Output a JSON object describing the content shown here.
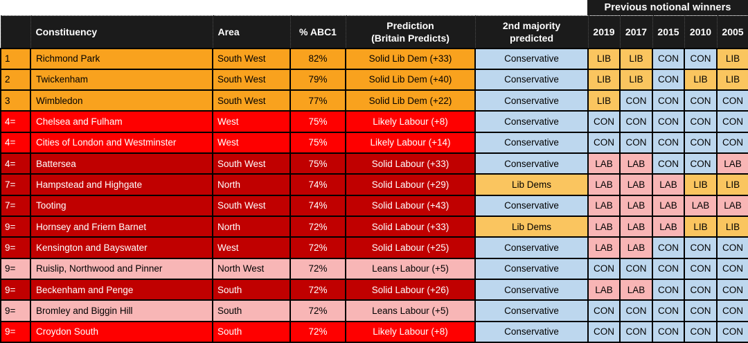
{
  "top_header": {
    "label": "Previous notional winners"
  },
  "columns": {
    "rank": "",
    "constituency": "Constituency",
    "area": "Area",
    "abc1": "% ABC1",
    "prediction": [
      "Prediction",
      "(Britain Predicts)"
    ],
    "majority": [
      "2nd majority",
      "predicted"
    ],
    "years": [
      "2019",
      "2017",
      "2015",
      "2010",
      "2005"
    ]
  },
  "colors": {
    "header_bg": "#1B1B1B",
    "header_text": "#FFFFFF",
    "row_tones": {
      "libdem": {
        "bg": "#F9A21E",
        "text": "#000000"
      },
      "likely": {
        "bg": "#FE0000",
        "text": "#FFFFFF"
      },
      "solid": {
        "bg": "#C00000",
        "text": "#FFFFFF"
      },
      "leans": {
        "bg": "#F8B6B6",
        "text": "#000000"
      }
    },
    "party_cells": {
      "con": {
        "bg": "#BDD7EE",
        "text": "#000000"
      },
      "lab": {
        "bg": "#F8B5B5",
        "text": "#000000"
      },
      "lib": {
        "bg": "#FAC55F",
        "text": "#000000"
      }
    }
  },
  "rows": [
    {
      "rank": "1",
      "constituency": "Richmond Park",
      "area": "South West",
      "abc1": "82%",
      "prediction": "Solid Lib Dem (+33)",
      "tone": "libdem",
      "majority": "Conservative",
      "majority_party": "con",
      "years": [
        "LIB",
        "LIB",
        "CON",
        "CON",
        "LIB"
      ]
    },
    {
      "rank": "2",
      "constituency": "Twickenham",
      "area": "South West",
      "abc1": "79%",
      "prediction": "Solid Lib Dem (+40)",
      "tone": "libdem",
      "majority": "Conservative",
      "majority_party": "con",
      "years": [
        "LIB",
        "LIB",
        "CON",
        "LIB",
        "LIB"
      ]
    },
    {
      "rank": "3",
      "constituency": "Wimbledon",
      "area": "South West",
      "abc1": "77%",
      "prediction": "Solid Lib Dem (+22)",
      "tone": "libdem",
      "majority": "Conservative",
      "majority_party": "con",
      "years": [
        "LIB",
        "CON",
        "CON",
        "CON",
        "CON"
      ]
    },
    {
      "rank": "4=",
      "constituency": "Chelsea and Fulham",
      "area": "West",
      "abc1": "75%",
      "prediction": "Likely Labour (+8)",
      "tone": "likely",
      "majority": "Conservative",
      "majority_party": "con",
      "years": [
        "CON",
        "CON",
        "CON",
        "CON",
        "CON"
      ]
    },
    {
      "rank": "4=",
      "constituency": "Cities of London and Westminster",
      "area": "West",
      "abc1": "75%",
      "prediction": "Likely Labour (+14)",
      "tone": "likely",
      "majority": "Conservative",
      "majority_party": "con",
      "years": [
        "CON",
        "CON",
        "CON",
        "CON",
        "CON"
      ]
    },
    {
      "rank": "4=",
      "constituency": "Battersea",
      "area": "South West",
      "abc1": "75%",
      "prediction": "Solid Labour (+33)",
      "tone": "solid",
      "majority": "Conservative",
      "majority_party": "con",
      "years": [
        "LAB",
        "LAB",
        "CON",
        "CON",
        "LAB"
      ]
    },
    {
      "rank": "7=",
      "constituency": "Hampstead and Highgate",
      "area": "North",
      "abc1": "74%",
      "prediction": "Solid Labour (+29)",
      "tone": "solid",
      "majority": "Lib Dems",
      "majority_party": "lib",
      "years": [
        "LAB",
        "LAB",
        "LAB",
        "LIB",
        "LIB"
      ]
    },
    {
      "rank": "7=",
      "constituency": "Tooting",
      "area": "South West",
      "abc1": "74%",
      "prediction": "Solid Labour (+43)",
      "tone": "solid",
      "majority": "Conservative",
      "majority_party": "con",
      "years": [
        "LAB",
        "LAB",
        "LAB",
        "LAB",
        "LAB"
      ]
    },
    {
      "rank": "9=",
      "constituency": "Hornsey and Friern Barnet",
      "area": "North",
      "abc1": "72%",
      "prediction": "Solid Labour (+33)",
      "tone": "solid",
      "majority": "Lib Dems",
      "majority_party": "lib",
      "years": [
        "LAB",
        "LAB",
        "LAB",
        "LIB",
        "LIB"
      ]
    },
    {
      "rank": "9=",
      "constituency": "Kensington and Bayswater",
      "area": "West",
      "abc1": "72%",
      "prediction": "Solid Labour (+25)",
      "tone": "solid",
      "majority": "Conservative",
      "majority_party": "con",
      "years": [
        "LAB",
        "LAB",
        "CON",
        "CON",
        "CON"
      ]
    },
    {
      "rank": "9=",
      "constituency": "Ruislip, Northwood and Pinner",
      "area": "North West",
      "abc1": "72%",
      "prediction": "Leans Labour (+5)",
      "tone": "leans",
      "majority": "Conservative",
      "majority_party": "con",
      "years": [
        "CON",
        "CON",
        "CON",
        "CON",
        "CON"
      ]
    },
    {
      "rank": "9=",
      "constituency": "Beckenham and Penge",
      "area": "South",
      "abc1": "72%",
      "prediction": "Solid Labour (+26)",
      "tone": "solid",
      "majority": "Conservative",
      "majority_party": "con",
      "years": [
        "LAB",
        "LAB",
        "CON",
        "CON",
        "CON"
      ]
    },
    {
      "rank": "9=",
      "constituency": "Bromley and Biggin Hill",
      "area": "South",
      "abc1": "72%",
      "prediction": "Leans Labour (+5)",
      "tone": "leans",
      "majority": "Conservative",
      "majority_party": "con",
      "years": [
        "CON",
        "CON",
        "CON",
        "CON",
        "CON"
      ]
    },
    {
      "rank": "9=",
      "constituency": "Croydon South",
      "area": "South",
      "abc1": "72%",
      "prediction": "Likely Labour (+8)",
      "tone": "likely",
      "majority": "Conservative",
      "majority_party": "con",
      "years": [
        "CON",
        "CON",
        "CON",
        "CON",
        "CON"
      ]
    }
  ]
}
